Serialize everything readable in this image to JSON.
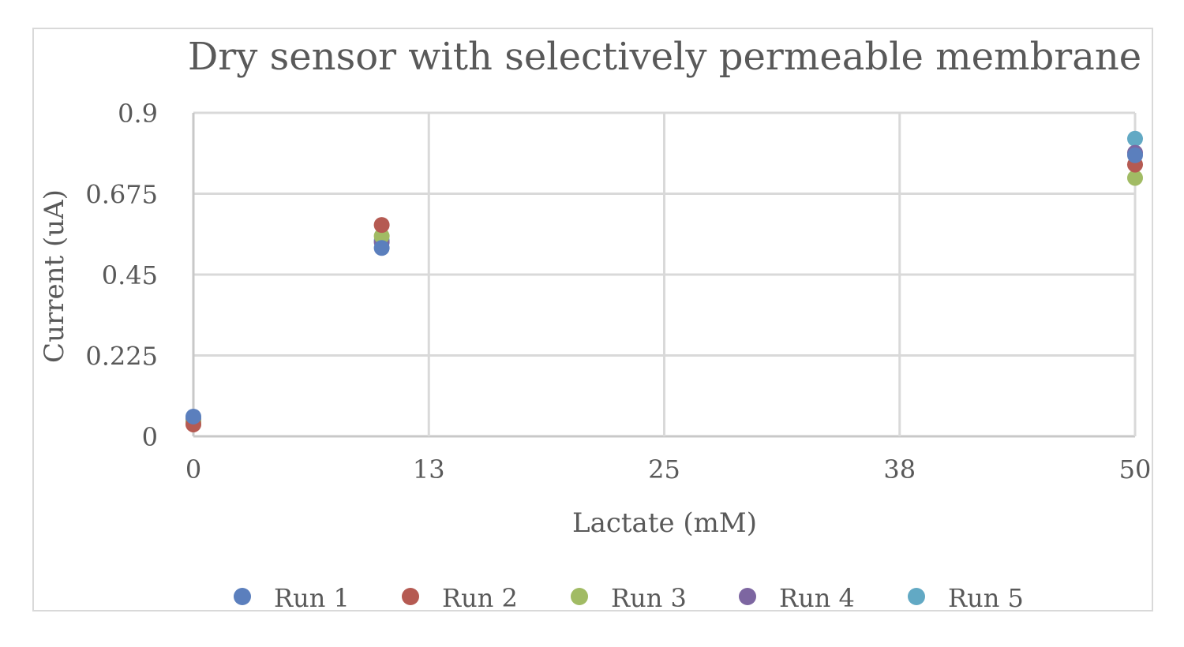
{
  "chart_data": {
    "type": "scatter",
    "title": "Dry sensor with selectively permeable membrane",
    "xlabel": "Lactate (mM)",
    "ylabel": "Current (uA)",
    "xlim": [
      0,
      50
    ],
    "ylim": [
      0,
      0.9
    ],
    "x_ticks": [
      "0",
      "13",
      "25",
      "38",
      "50"
    ],
    "x_tick_values": [
      0,
      12.5,
      25,
      37.5,
      50
    ],
    "y_ticks": [
      "0",
      "0.225",
      "0.45",
      "0.675",
      "0.9"
    ],
    "y_tick_values": [
      0,
      0.225,
      0.45,
      0.675,
      0.9
    ],
    "grid": true,
    "legend_position": "bottom",
    "series": [
      {
        "name": "Run 1",
        "color": "#5b7fbd",
        "x": [
          0,
          10,
          50
        ],
        "y": [
          0.055,
          0.524,
          0.782
        ]
      },
      {
        "name": "Run 2",
        "color": "#b55a52",
        "x": [
          0,
          10,
          50
        ],
        "y": [
          0.033,
          0.588,
          0.756
        ]
      },
      {
        "name": "Run 3",
        "color": "#a1bb64",
        "x": [
          0,
          10,
          50
        ],
        "y": [
          0.04,
          0.557,
          0.719
        ]
      },
      {
        "name": "Run 4",
        "color": "#7d66a1",
        "x": [
          0,
          10,
          50
        ],
        "y": [
          0.045,
          0.54,
          0.789
        ]
      },
      {
        "name": "Run 5",
        "color": "#62a9c4",
        "x": [
          0,
          10,
          50
        ],
        "y": [
          0.05,
          0.545,
          0.828
        ]
      }
    ]
  },
  "legend": {
    "items": [
      {
        "label": "Run 1",
        "color": "#5b7fbd"
      },
      {
        "label": "Run 2",
        "color": "#b55a52"
      },
      {
        "label": "Run 3",
        "color": "#a1bb64"
      },
      {
        "label": "Run 4",
        "color": "#7d66a1"
      },
      {
        "label": "Run 5",
        "color": "#62a9c4"
      }
    ]
  }
}
